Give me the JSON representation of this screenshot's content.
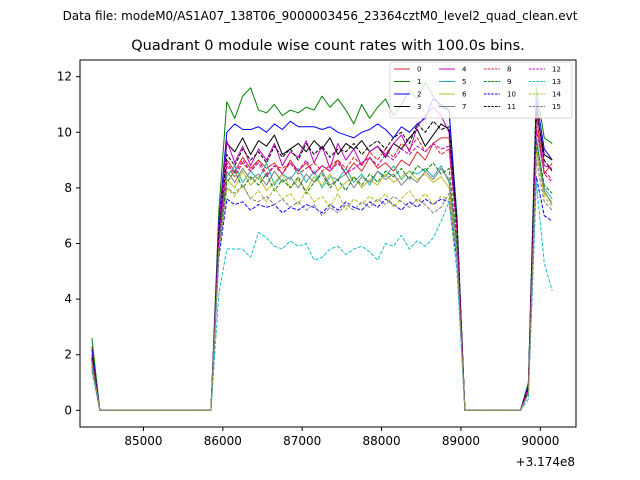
{
  "figure": {
    "suptitle": "Data file: modeM0/AS1A07_138T06_9000003456_23364cztM0_level2_quad_clean.evt"
  },
  "chart_data": {
    "type": "line",
    "title": "Quadrant 0 module wise count rates with 100.0s bins.",
    "xlabel": "",
    "ylabel": "",
    "x_offset_label": "+3.174e8",
    "x_offset": 317400000,
    "xlim": [
      84200,
      90450
    ],
    "ylim": [
      -0.6,
      12.6
    ],
    "xticks": [
      85000,
      86000,
      87000,
      88000,
      89000,
      90000
    ],
    "xtick_labels": [
      "85000",
      "86000",
      "87000",
      "88000",
      "89000",
      "90000"
    ],
    "yticks": [
      0,
      2,
      4,
      6,
      8,
      10,
      12
    ],
    "ytick_labels": [
      "0",
      "2",
      "4",
      "6",
      "8",
      "10",
      "12"
    ],
    "x": [
      84350,
      84450,
      84550,
      84650,
      84750,
      84850,
      84950,
      85050,
      85150,
      85250,
      85350,
      85450,
      85550,
      85650,
      85750,
      85850,
      85950,
      86050,
      86150,
      86250,
      86350,
      86450,
      86550,
      86650,
      86750,
      86850,
      86950,
      87050,
      87150,
      87250,
      87350,
      87450,
      87550,
      87650,
      87750,
      87850,
      87950,
      88050,
      88150,
      88250,
      88350,
      88450,
      88550,
      88650,
      88750,
      88850,
      88950,
      89050,
      89150,
      89250,
      89350,
      89450,
      89550,
      89650,
      89750,
      89850,
      89950,
      90050,
      90150
    ],
    "series": [
      {
        "name": "0",
        "color": "#d62728",
        "dash": "solid",
        "values": [
          2.3,
          0,
          0,
          0,
          0,
          0,
          0,
          0,
          0,
          0,
          0,
          0,
          0,
          0,
          0,
          0,
          6.0,
          9.0,
          8.6,
          9.1,
          8.7,
          9.0,
          8.7,
          8.9,
          8.5,
          9.0,
          8.6,
          8.9,
          8.5,
          8.8,
          8.6,
          9.0,
          8.5,
          8.9,
          8.6,
          9.1,
          8.7,
          8.9,
          8.6,
          9.0,
          8.8,
          9.3,
          9.0,
          9.6,
          9.8,
          9.8,
          6.5,
          0,
          0,
          0,
          0,
          0,
          0,
          0,
          0,
          0.8,
          10.6,
          8.5,
          8.9
        ]
      },
      {
        "name": "1",
        "color": "#008000",
        "dash": "solid",
        "values": [
          2.6,
          0,
          0,
          0,
          0,
          0,
          0,
          0,
          0,
          0,
          0,
          0,
          0,
          0,
          0,
          0,
          7.2,
          11.1,
          10.5,
          11.3,
          11.6,
          10.8,
          10.7,
          11.0,
          10.6,
          10.8,
          10.7,
          10.9,
          10.8,
          11.3,
          10.9,
          11.2,
          10.8,
          10.3,
          11.0,
          10.5,
          10.9,
          11.2,
          10.6,
          11.0,
          11.5,
          11.2,
          11.8,
          11.3,
          10.9,
          10.8,
          7.0,
          0,
          0,
          0,
          0,
          0,
          0,
          0,
          0,
          1.0,
          11.6,
          9.8,
          9.6
        ]
      },
      {
        "name": "2",
        "color": "#0000ff",
        "dash": "solid",
        "values": [
          2.2,
          0,
          0,
          0,
          0,
          0,
          0,
          0,
          0,
          0,
          0,
          0,
          0,
          0,
          0,
          0,
          6.8,
          10.0,
          10.3,
          10.1,
          10.1,
          10.2,
          10.0,
          10.3,
          10.1,
          10.4,
          10.2,
          10.2,
          10.2,
          10.1,
          10.2,
          10.0,
          9.9,
          9.8,
          10.0,
          10.1,
          10.3,
          10.1,
          9.8,
          10.2,
          10.0,
          10.3,
          10.5,
          11.2,
          11.0,
          10.8,
          6.8,
          0,
          0,
          0,
          0,
          0,
          0,
          0,
          0,
          0.9,
          11.2,
          9.4,
          9.0
        ]
      },
      {
        "name": "3",
        "color": "#000000",
        "dash": "solid",
        "values": [
          1.9,
          0,
          0,
          0,
          0,
          0,
          0,
          0,
          0,
          0,
          0,
          0,
          0,
          0,
          0,
          0,
          6.5,
          9.6,
          9.3,
          9.8,
          9.2,
          9.7,
          9.5,
          9.9,
          9.2,
          9.4,
          9.6,
          9.3,
          9.7,
          9.4,
          9.8,
          9.2,
          9.6,
          9.4,
          9.7,
          9.3,
          9.5,
          9.1,
          9.6,
          9.4,
          9.8,
          10.1,
          9.5,
          9.9,
          10.3,
          10.1,
          6.6,
          0,
          0,
          0,
          0,
          0,
          0,
          0,
          0,
          0.8,
          10.8,
          9.2,
          9.0
        ]
      },
      {
        "name": "4",
        "color": "#bf00bf",
        "dash": "solid",
        "values": [
          1.8,
          0,
          0,
          0,
          0,
          0,
          0,
          0,
          0,
          0,
          0,
          0,
          0,
          0,
          0,
          0,
          6.6,
          9.7,
          8.9,
          9.5,
          8.8,
          9.4,
          9.0,
          9.6,
          8.8,
          9.3,
          9.1,
          9.7,
          8.9,
          9.5,
          8.7,
          9.6,
          9.0,
          9.4,
          8.8,
          9.3,
          9.5,
          9.2,
          9.6,
          9.9,
          9.3,
          10.2,
          10.6,
          10.9,
          10.6,
          10.0,
          6.7,
          0,
          0,
          0,
          0,
          0,
          0,
          0,
          0,
          0.8,
          11.0,
          8.8,
          8.7
        ]
      },
      {
        "name": "5",
        "color": "#20b2aa",
        "dash": "solid",
        "values": [
          1.7,
          0,
          0,
          0,
          0,
          0,
          0,
          0,
          0,
          0,
          0,
          0,
          0,
          0,
          0,
          0,
          6.2,
          8.4,
          8.8,
          8.2,
          8.6,
          8.3,
          8.9,
          8.1,
          8.5,
          8.3,
          8.7,
          8.2,
          8.6,
          8.0,
          8.4,
          8.3,
          8.7,
          8.2,
          8.5,
          8.1,
          8.6,
          8.4,
          8.8,
          8.3,
          8.6,
          8.5,
          8.7,
          8.4,
          8.8,
          8.2,
          6.0,
          0,
          0,
          0,
          0,
          0,
          0,
          0,
          0,
          0.7,
          9.8,
          8.0,
          7.6
        ]
      },
      {
        "name": "6",
        "color": "#bcbd22",
        "dash": "solid",
        "values": [
          1.6,
          0,
          0,
          0,
          0,
          0,
          0,
          0,
          0,
          0,
          0,
          0,
          0,
          0,
          0,
          0,
          6.0,
          8.3,
          8.0,
          8.6,
          8.1,
          8.4,
          7.9,
          8.2,
          8.5,
          8.0,
          8.3,
          7.9,
          8.4,
          8.1,
          8.5,
          7.9,
          8.2,
          8.4,
          8.0,
          8.3,
          8.1,
          8.5,
          8.2,
          8.4,
          8.6,
          8.3,
          8.5,
          8.2,
          8.4,
          8.0,
          5.8,
          0,
          0,
          0,
          0,
          0,
          0,
          0,
          0,
          0.7,
          9.5,
          7.8,
          7.5
        ]
      },
      {
        "name": "7",
        "color": "#7f7f7f",
        "dash": "solid",
        "values": [
          1.5,
          0,
          0,
          0,
          0,
          0,
          0,
          0,
          0,
          0,
          0,
          0,
          0,
          0,
          0,
          0,
          5.9,
          8.6,
          8.2,
          8.7,
          8.3,
          8.5,
          8.1,
          8.6,
          8.2,
          8.4,
          8.0,
          8.5,
          8.2,
          8.6,
          8.1,
          8.3,
          8.5,
          8.0,
          8.4,
          8.2,
          8.6,
          8.3,
          8.5,
          8.1,
          8.4,
          8.2,
          8.6,
          8.3,
          8.7,
          8.3,
          5.9,
          0,
          0,
          0,
          0,
          0,
          0,
          0,
          0,
          0.7,
          9.4,
          7.9,
          7.4
        ]
      },
      {
        "name": "8",
        "color": "#d62728",
        "dash": "dashed",
        "values": [
          2.0,
          0,
          0,
          0,
          0,
          0,
          0,
          0,
          0,
          0,
          0,
          0,
          0,
          0,
          0,
          0,
          6.3,
          8.8,
          8.4,
          8.9,
          8.6,
          9.0,
          8.5,
          8.8,
          8.7,
          8.9,
          8.5,
          8.7,
          8.9,
          8.6,
          8.8,
          9.0,
          8.7,
          9.1,
          8.8,
          9.3,
          9.0,
          9.4,
          9.1,
          9.6,
          9.4,
          9.8,
          9.3,
          9.6,
          9.2,
          9.4,
          6.4,
          0,
          0,
          0,
          0,
          0,
          0,
          0,
          0,
          0.8,
          10.2,
          8.6,
          8.3
        ]
      },
      {
        "name": "9",
        "color": "#008000",
        "dash": "dashed",
        "values": [
          1.8,
          0,
          0,
          0,
          0,
          0,
          0,
          0,
          0,
          0,
          0,
          0,
          0,
          0,
          0,
          0,
          6.1,
          8.2,
          8.6,
          8.0,
          8.4,
          8.1,
          8.5,
          7.9,
          8.3,
          8.0,
          8.4,
          7.8,
          8.2,
          8.5,
          8.0,
          8.3,
          7.9,
          8.4,
          8.1,
          8.5,
          8.2,
          8.6,
          8.4,
          8.7,
          8.3,
          8.8,
          8.6,
          8.9,
          8.5,
          8.7,
          6.1,
          0,
          0,
          0,
          0,
          0,
          0,
          0,
          0,
          0.7,
          9.7,
          8.1,
          7.8
        ]
      },
      {
        "name": "10",
        "color": "#0000ff",
        "dash": "dashed",
        "values": [
          1.7,
          0,
          0,
          0,
          0,
          0,
          0,
          0,
          0,
          0,
          0,
          0,
          0,
          0,
          0,
          0,
          5.5,
          7.6,
          7.4,
          7.5,
          7.2,
          7.4,
          7.3,
          7.4,
          7.1,
          7.3,
          7.2,
          7.4,
          7.3,
          7.1,
          7.4,
          7.2,
          7.5,
          7.3,
          7.2,
          7.5,
          7.3,
          7.6,
          7.4,
          7.2,
          7.5,
          7.3,
          7.6,
          7.4,
          7.6,
          7.5,
          5.4,
          0,
          0,
          0,
          0,
          0,
          0,
          0,
          0,
          0.6,
          8.4,
          7.0,
          6.8
        ]
      },
      {
        "name": "11",
        "color": "#000000",
        "dash": "dashed",
        "values": [
          1.9,
          0,
          0,
          0,
          0,
          0,
          0,
          0,
          0,
          0,
          0,
          0,
          0,
          0,
          0,
          0,
          6.4,
          9.2,
          8.8,
          9.4,
          9.0,
          9.3,
          8.9,
          9.5,
          9.1,
          9.4,
          9.0,
          9.6,
          9.2,
          9.5,
          9.1,
          9.4,
          9.3,
          9.6,
          9.2,
          9.5,
          9.7,
          9.4,
          9.8,
          10.0,
          9.6,
          10.3,
          10.0,
          10.4,
          10.1,
          10.2,
          6.8,
          0,
          0,
          0,
          0,
          0,
          0,
          0,
          0,
          0.8,
          10.9,
          9.0,
          8.6
        ]
      },
      {
        "name": "12",
        "color": "#bf00bf",
        "dash": "dashed",
        "values": [
          1.8,
          0,
          0,
          0,
          0,
          0,
          0,
          0,
          0,
          0,
          0,
          0,
          0,
          0,
          0,
          0,
          6.2,
          8.9,
          8.5,
          9.0,
          8.6,
          8.9,
          8.4,
          8.8,
          8.5,
          8.9,
          8.6,
          9.0,
          8.5,
          8.8,
          8.6,
          8.9,
          8.5,
          8.7,
          8.9,
          9.1,
          8.8,
          9.2,
          9.0,
          9.4,
          9.2,
          9.5,
          9.3,
          9.6,
          9.4,
          9.5,
          6.5,
          0,
          0,
          0,
          0,
          0,
          0,
          0,
          0,
          0.8,
          10.1,
          8.5,
          8.2
        ]
      },
      {
        "name": "13",
        "color": "#17becf",
        "dash": "dashed",
        "values": [
          1.4,
          0,
          0,
          0,
          0,
          0,
          0,
          0,
          0,
          0,
          0,
          0,
          0,
          0,
          0,
          0,
          4.2,
          5.8,
          5.8,
          5.8,
          5.5,
          6.4,
          6.2,
          5.9,
          5.8,
          6.1,
          5.9,
          6.0,
          5.4,
          5.5,
          5.8,
          5.9,
          5.6,
          5.8,
          5.9,
          5.7,
          5.4,
          6.0,
          5.9,
          6.3,
          5.8,
          6.1,
          5.9,
          6.2,
          6.8,
          7.5,
          5.0,
          0,
          0,
          0,
          0,
          0,
          0,
          0,
          0,
          0.4,
          8.2,
          5.3,
          4.3
        ]
      },
      {
        "name": "14",
        "color": "#bcbd22",
        "dash": "dashed",
        "values": [
          1.7,
          0,
          0,
          0,
          0,
          0,
          0,
          0,
          0,
          0,
          0,
          0,
          0,
          0,
          0,
          0,
          5.8,
          8.0,
          7.7,
          8.1,
          7.6,
          7.9,
          7.5,
          8.0,
          7.6,
          7.8,
          7.4,
          7.9,
          7.5,
          7.7,
          7.3,
          7.8,
          7.2,
          7.6,
          7.4,
          7.7,
          7.5,
          7.8,
          7.3,
          7.6,
          7.9,
          7.5,
          7.8,
          7.4,
          7.7,
          7.6,
          5.6,
          0,
          0,
          0,
          0,
          0,
          0,
          0,
          0,
          0.6,
          9.3,
          7.7,
          7.3
        ]
      },
      {
        "name": "15",
        "color": "#7f7f7f",
        "dash": "dashed",
        "values": [
          1.6,
          0,
          0,
          0,
          0,
          0,
          0,
          0,
          0,
          0,
          0,
          0,
          0,
          0,
          0,
          0,
          5.7,
          8.0,
          7.8,
          8.1,
          7.6,
          7.5,
          7.7,
          7.4,
          7.6,
          7.3,
          7.5,
          7.2,
          7.4,
          7.0,
          7.3,
          7.1,
          7.4,
          7.2,
          7.5,
          7.3,
          7.6,
          7.4,
          7.7,
          7.5,
          7.3,
          7.6,
          7.4,
          7.1,
          7.3,
          7.8,
          5.5,
          0,
          0,
          0,
          0,
          0,
          0,
          0,
          0,
          0.6,
          9.0,
          7.5,
          7.2
        ]
      }
    ],
    "legend": {
      "placement": "top-right",
      "columns": 4
    }
  }
}
